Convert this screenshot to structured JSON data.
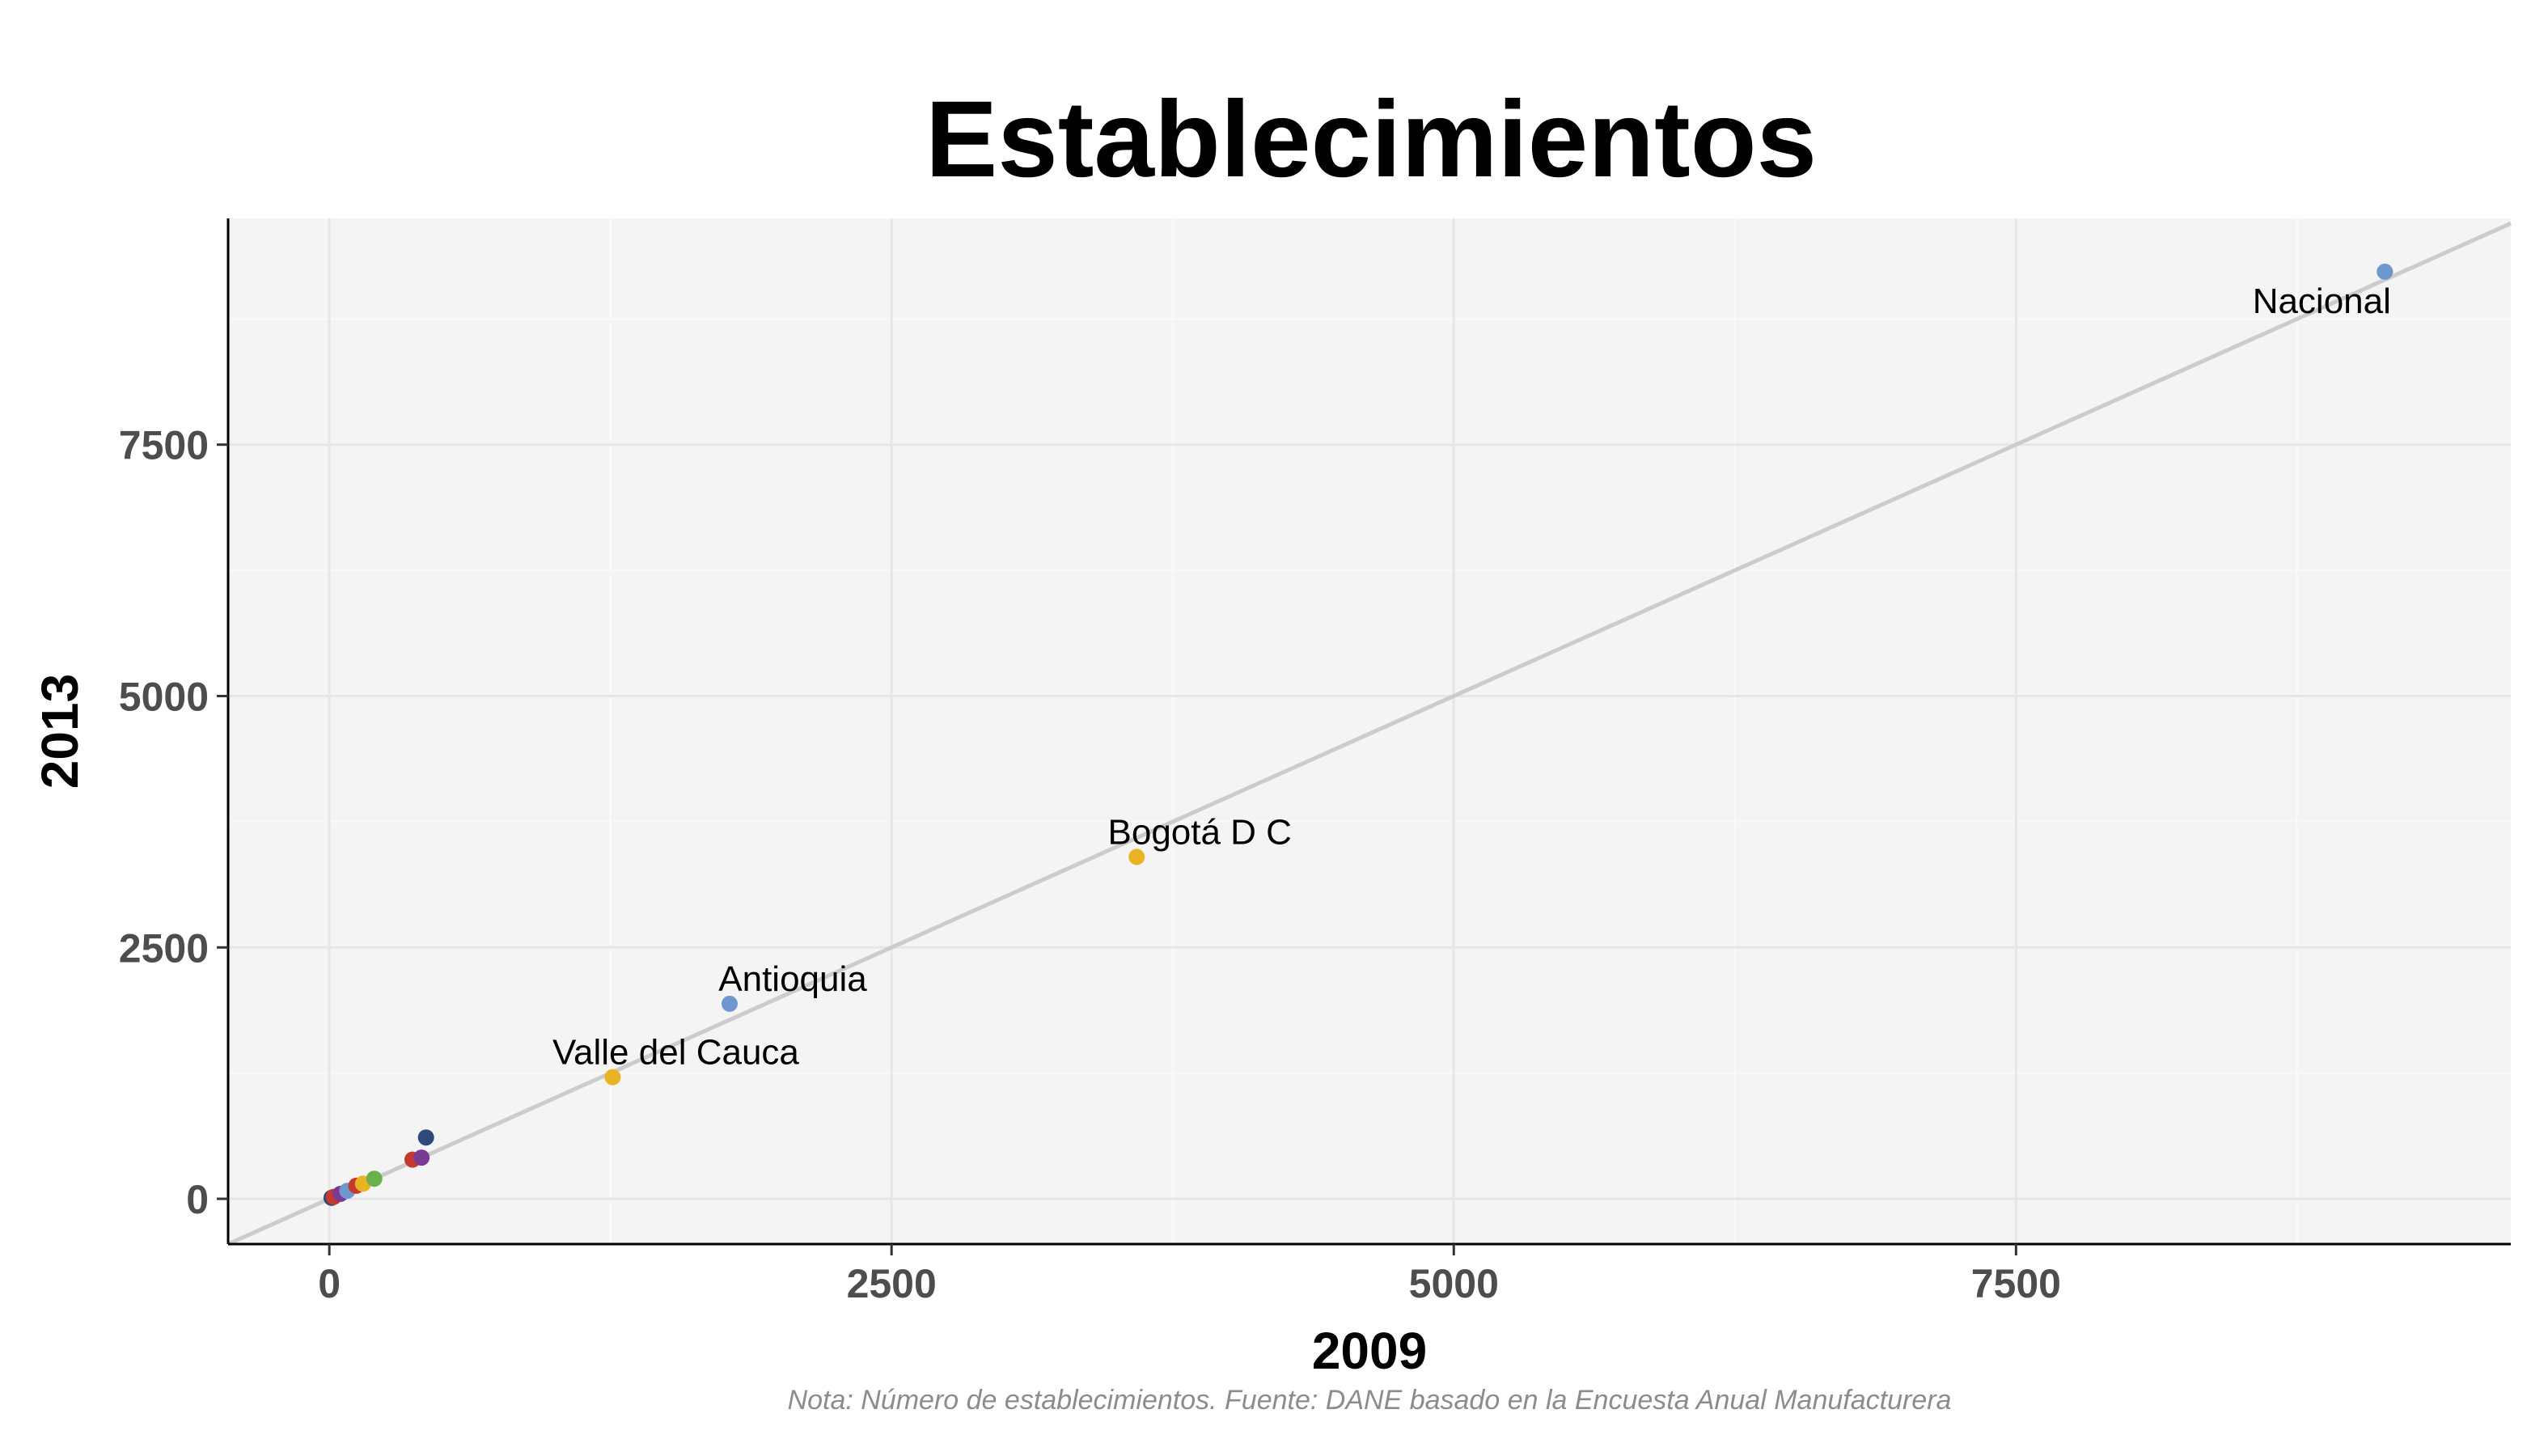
{
  "chart_data": {
    "type": "scatter",
    "title": "Establecimientos",
    "xlabel": "2009",
    "ylabel": "2013",
    "caption": "Nota: Número de establecimientos. Fuente: DANE basado en la Encuesta Anual Manufacturera",
    "xlim": [
      -450,
      9700
    ],
    "ylim": [
      -450,
      9750
    ],
    "xticks": [
      0,
      2500,
      5000,
      7500
    ],
    "xtick_labels": [
      "0",
      "2500",
      "5000",
      "7500"
    ],
    "yticks": [
      0,
      2500,
      5000,
      7500
    ],
    "ytick_labels": [
      "0",
      "2500",
      "5000",
      "7500"
    ],
    "grid": true,
    "legend": "none",
    "reference_line": {
      "type": "identity",
      "color": "#cccccc"
    },
    "points": [
      {
        "x": 9140,
        "y": 9220,
        "color": "#6f97cf",
        "label": "Nacional"
      },
      {
        "x": 3590,
        "y": 3400,
        "color": "#e8b424",
        "label": "Bogotá D C"
      },
      {
        "x": 1780,
        "y": 1940,
        "color": "#6f97cf",
        "label": "Antioquia"
      },
      {
        "x": 1260,
        "y": 1210,
        "color": "#e8b424",
        "label": "Valle del Cauca"
      },
      {
        "x": 430,
        "y": 610,
        "color": "#2d4a78",
        "label": ""
      },
      {
        "x": 410,
        "y": 410,
        "color": "#7a3a94",
        "label": ""
      },
      {
        "x": 370,
        "y": 390,
        "color": "#c53a2e",
        "label": ""
      },
      {
        "x": 200,
        "y": 200,
        "color": "#6ab04c",
        "label": ""
      },
      {
        "x": 150,
        "y": 150,
        "color": "#e8b424",
        "label": ""
      },
      {
        "x": 120,
        "y": 130,
        "color": "#c53a2e",
        "label": ""
      },
      {
        "x": 80,
        "y": 80,
        "color": "#6f97cf",
        "label": ""
      },
      {
        "x": 50,
        "y": 50,
        "color": "#7a3a94",
        "label": ""
      },
      {
        "x": 20,
        "y": 20,
        "color": "#c53a2e",
        "label": ""
      },
      {
        "x": 10,
        "y": 10,
        "color": "#2d4a78",
        "label": ""
      }
    ]
  }
}
